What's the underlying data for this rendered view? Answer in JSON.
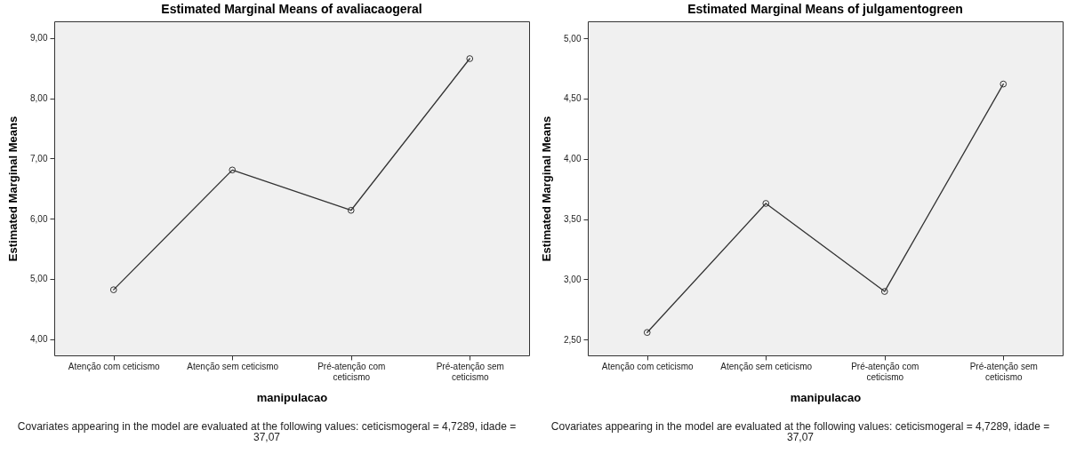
{
  "chart_data": [
    {
      "type": "line",
      "title": "Estimated Marginal Means of avaliacaogeral",
      "xlabel": "manipulacao",
      "ylabel": "Estimated Marginal Means",
      "categories": [
        "Atenção com ceticismo",
        "Atenção sem ceticismo",
        "Pré-atenção com ceticismo",
        "Pré-atenção sem ceticismo"
      ],
      "series": [
        {
          "color": "#333333",
          "values": [
            4.82,
            6.81,
            6.14,
            8.66
          ]
        }
      ],
      "ylim": [
        3.73,
        9.28
      ],
      "yticks": [
        {
          "value": 4,
          "label": "4,00"
        },
        {
          "value": 5,
          "label": "5,00"
        },
        {
          "value": 6,
          "label": "6,00"
        },
        {
          "value": 7,
          "label": "7,00"
        },
        {
          "value": 8,
          "label": "8,00"
        },
        {
          "value": 9,
          "label": "9,00"
        }
      ],
      "marker": "circle",
      "grid": false,
      "annotations": [
        "Covariates appearing in the model are evaluated at the following values: ceticismogeral = 4,7289, idade = 37,07"
      ]
    },
    {
      "type": "line",
      "title": "Estimated Marginal Means of julgamentogreen",
      "xlabel": "manipulacao",
      "ylabel": "Estimated Marginal Means",
      "categories": [
        "Atenção com ceticismo",
        "Atenção sem ceticismo",
        "Pré-atenção com ceticismo",
        "Pré-atenção sem ceticismo"
      ],
      "series": [
        {
          "color": "#333333",
          "values": [
            2.56,
            3.63,
            2.9,
            4.62
          ]
        }
      ],
      "ylim": [
        2.37,
        5.14
      ],
      "yticks": [
        {
          "value": 2.5,
          "label": "2,50"
        },
        {
          "value": 3,
          "label": "3,00"
        },
        {
          "value": 3.5,
          "label": "3,50"
        },
        {
          "value": 4,
          "label": "4,00"
        },
        {
          "value": 4.5,
          "label": "4,50"
        },
        {
          "value": 5,
          "label": "5,00"
        }
      ],
      "marker": "circle",
      "grid": false,
      "annotations": [
        "Covariates appearing in the model are evaluated at the following values: ceticismogeral = 4,7289, idade = 37,07"
      ]
    }
  ]
}
